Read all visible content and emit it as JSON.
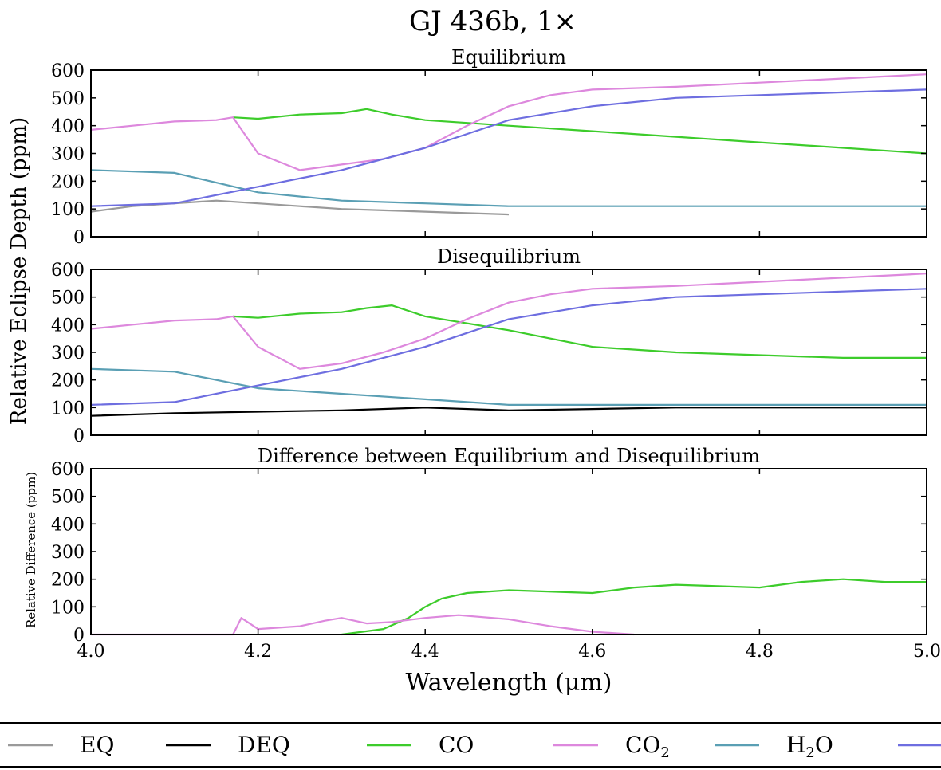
{
  "figure": {
    "title": "GJ 436b, 1×",
    "ylabel_main": "Relative Eclipse Depth (ppm)",
    "ylabel_diff": "Relative Difference (ppm)",
    "xlabel": "Wavelength (μm)"
  },
  "legend": [
    {
      "label": "EQ",
      "color": "#9a9a9a"
    },
    {
      "label": "DEQ",
      "color": "#000000"
    },
    {
      "label": "CO",
      "color": "#3dcc2b"
    },
    {
      "label": "CO",
      "sub": "2",
      "color": "#dd88dd"
    },
    {
      "label": "H",
      "sub": "2",
      "tail": "O",
      "color": "#5a9fb4"
    },
    {
      "label": "",
      "color": "#6e6ee0"
    }
  ],
  "chart_data": [
    {
      "type": "line",
      "title": "Equilibrium",
      "xlim": [
        4.0,
        5.0
      ],
      "ylim": [
        0,
        600
      ],
      "xticks": [
        4.0,
        4.2,
        4.4,
        4.6,
        4.8,
        5.0
      ],
      "yticks": [
        0,
        100,
        200,
        300,
        400,
        500,
        600
      ],
      "series": [
        {
          "name": "EQ",
          "color": "#9a9a9a",
          "x": [
            4.0,
            4.05,
            4.1,
            4.15,
            4.2,
            4.25,
            4.3,
            4.35,
            4.4,
            4.45,
            4.5
          ],
          "y": [
            90,
            110,
            120,
            130,
            120,
            110,
            100,
            95,
            90,
            85,
            80
          ]
        },
        {
          "name": "CO",
          "color": "#3dcc2b",
          "x": [
            4.17,
            4.2,
            4.25,
            4.3,
            4.33,
            4.36,
            4.4,
            4.5,
            4.6,
            4.7,
            4.8,
            4.9,
            5.0
          ],
          "y": [
            430,
            425,
            440,
            445,
            460,
            440,
            420,
            400,
            380,
            360,
            340,
            320,
            300
          ]
        },
        {
          "name": "CO2",
          "color": "#dd88dd",
          "x": [
            4.0,
            4.05,
            4.1,
            4.15,
            4.17,
            4.2,
            4.25,
            4.3,
            4.35,
            4.4,
            4.45,
            4.5,
            4.55,
            4.6,
            4.7,
            4.8,
            4.9,
            5.0
          ],
          "y": [
            385,
            400,
            415,
            420,
            430,
            300,
            240,
            260,
            280,
            320,
            400,
            470,
            510,
            530,
            540,
            555,
            570,
            585
          ]
        },
        {
          "name": "H2O",
          "color": "#5a9fb4",
          "x": [
            4.0,
            4.1,
            4.2,
            4.3,
            4.4,
            4.5,
            4.6,
            4.7,
            4.8,
            4.9,
            5.0
          ],
          "y": [
            240,
            230,
            160,
            130,
            120,
            110,
            110,
            110,
            110,
            110,
            110
          ]
        },
        {
          "name": "",
          "color": "#6e6ee0",
          "x": [
            4.0,
            4.1,
            4.2,
            4.3,
            4.4,
            4.5,
            4.6,
            4.7,
            4.8,
            4.9,
            5.0
          ],
          "y": [
            110,
            120,
            180,
            240,
            320,
            420,
            470,
            500,
            510,
            520,
            530
          ]
        }
      ]
    },
    {
      "type": "line",
      "title": "Disequilibrium",
      "xlim": [
        4.0,
        5.0
      ],
      "ylim": [
        0,
        600
      ],
      "xticks": [
        4.0,
        4.2,
        4.4,
        4.6,
        4.8,
        5.0
      ],
      "yticks": [
        0,
        100,
        200,
        300,
        400,
        500,
        600
      ],
      "series": [
        {
          "name": "DEQ",
          "color": "#000000",
          "x": [
            4.0,
            4.1,
            4.2,
            4.3,
            4.4,
            4.5,
            4.6,
            4.7,
            4.8,
            4.9,
            5.0
          ],
          "y": [
            70,
            80,
            85,
            90,
            100,
            90,
            95,
            100,
            100,
            100,
            100
          ]
        },
        {
          "name": "CO",
          "color": "#3dcc2b",
          "x": [
            4.17,
            4.2,
            4.25,
            4.3,
            4.33,
            4.36,
            4.4,
            4.5,
            4.6,
            4.7,
            4.8,
            4.9,
            5.0
          ],
          "y": [
            430,
            425,
            440,
            445,
            460,
            470,
            430,
            380,
            320,
            300,
            290,
            280,
            280
          ]
        },
        {
          "name": "CO2",
          "color": "#dd88dd",
          "x": [
            4.0,
            4.05,
            4.1,
            4.15,
            4.17,
            4.2,
            4.25,
            4.3,
            4.35,
            4.4,
            4.45,
            4.5,
            4.55,
            4.6,
            4.7,
            4.8,
            4.9,
            5.0
          ],
          "y": [
            385,
            400,
            415,
            420,
            430,
            320,
            240,
            260,
            300,
            350,
            420,
            480,
            510,
            530,
            540,
            555,
            570,
            585
          ]
        },
        {
          "name": "H2O",
          "color": "#5a9fb4",
          "x": [
            4.0,
            4.1,
            4.2,
            4.3,
            4.4,
            4.5,
            4.6,
            4.7,
            4.8,
            4.9,
            5.0
          ],
          "y": [
            240,
            230,
            170,
            150,
            130,
            110,
            110,
            110,
            110,
            110,
            110
          ]
        },
        {
          "name": "",
          "color": "#6e6ee0",
          "x": [
            4.0,
            4.1,
            4.2,
            4.3,
            4.4,
            4.5,
            4.6,
            4.7,
            4.8,
            4.9,
            5.0
          ],
          "y": [
            110,
            120,
            180,
            240,
            320,
            420,
            470,
            500,
            510,
            520,
            530
          ]
        }
      ]
    },
    {
      "type": "line",
      "title": "Difference between Equilibrium and Disequilibrium",
      "xlim": [
        4.0,
        5.0
      ],
      "ylim": [
        0,
        600
      ],
      "xticks": [
        4.0,
        4.2,
        4.4,
        4.6,
        4.8,
        5.0
      ],
      "yticks": [
        0,
        100,
        200,
        300,
        400,
        500,
        600
      ],
      "series": [
        {
          "name": "CO",
          "color": "#3dcc2b",
          "x": [
            4.3,
            4.35,
            4.38,
            4.4,
            4.42,
            4.45,
            4.5,
            4.6,
            4.65,
            4.7,
            4.8,
            4.85,
            4.9,
            4.95,
            5.0
          ],
          "y": [
            0,
            20,
            60,
            100,
            130,
            150,
            160,
            150,
            170,
            180,
            170,
            190,
            200,
            190,
            190
          ]
        },
        {
          "name": "CO2",
          "color": "#dd88dd",
          "x": [
            4.0,
            4.17,
            4.18,
            4.2,
            4.25,
            4.28,
            4.3,
            4.33,
            4.36,
            4.4,
            4.44,
            4.5,
            4.55,
            4.6,
            4.65
          ],
          "y": [
            0,
            0,
            60,
            20,
            30,
            50,
            60,
            40,
            45,
            60,
            70,
            55,
            30,
            10,
            0
          ]
        }
      ]
    }
  ]
}
